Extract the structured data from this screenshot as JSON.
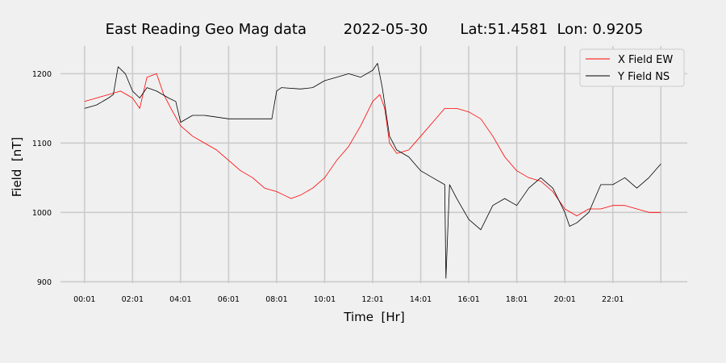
{
  "chart_data": {
    "type": "line",
    "title": "East Reading Geo Mag data        2022-05-30       Lat:51.4581  Lon: 0.9205",
    "xlabel": "Time  [Hr]",
    "ylabel": "Field  [nT]",
    "xlim": [
      -1.0,
      25.1
    ],
    "ylim": [
      898,
      1240
    ],
    "xticks": [
      0,
      2,
      4,
      6,
      8,
      10,
      12,
      14,
      16,
      18,
      20,
      22
    ],
    "xtick_labels": [
      "00:01",
      "02:01",
      "04:01",
      "06:01",
      "08:01",
      "10:01",
      "12:01",
      "14:01",
      "16:01",
      "18:01",
      "20:01",
      "22:01"
    ],
    "yticks": [
      900,
      1000,
      1100,
      1200
    ],
    "ytick_labels": [
      "900",
      "1000",
      "1100",
      "1200"
    ],
    "grid": true,
    "legend_position": "top-right",
    "x_unit": "hours",
    "series": [
      {
        "name": "X Field EW",
        "color": "#ff0000",
        "x": [
          0,
          0.5,
          1,
          1.5,
          2,
          2.3,
          2.6,
          3,
          3.3,
          3.6,
          4,
          4.5,
          5,
          5.5,
          6,
          6.5,
          7,
          7.5,
          8,
          8.3,
          8.6,
          9,
          9.5,
          10,
          10.5,
          11,
          11.5,
          12,
          12.3,
          12.5,
          12.7,
          13,
          13.5,
          14,
          14.5,
          15,
          15.5,
          16,
          16.5,
          17,
          17.5,
          18,
          18.5,
          19,
          19.5,
          20,
          20.5,
          21,
          21.5,
          22,
          22.5,
          23,
          23.5,
          24
        ],
        "y": [
          1160,
          1165,
          1170,
          1175,
          1165,
          1150,
          1195,
          1200,
          1170,
          1150,
          1125,
          1110,
          1100,
          1090,
          1075,
          1060,
          1050,
          1035,
          1030,
          1025,
          1020,
          1025,
          1035,
          1050,
          1075,
          1095,
          1125,
          1160,
          1170,
          1150,
          1100,
          1085,
          1090,
          1110,
          1130,
          1150,
          1150,
          1145,
          1135,
          1110,
          1080,
          1060,
          1050,
          1045,
          1030,
          1005,
          995,
          1005,
          1005,
          1010,
          1010,
          1005,
          1000,
          1000
        ]
      },
      {
        "name": "Y Field NS",
        "color": "#000000",
        "x": [
          0,
          0.5,
          1,
          1.2,
          1.4,
          1.7,
          2,
          2.3,
          2.6,
          3,
          3.5,
          3.8,
          4,
          4.5,
          5,
          6,
          7,
          7.8,
          8,
          8.2,
          9,
          9.5,
          10,
          10.5,
          11,
          11.5,
          12,
          12.2,
          12.4,
          12.7,
          13,
          13.5,
          14,
          14.5,
          15,
          15.05,
          15.2,
          15.5,
          16,
          16.5,
          17,
          17.5,
          18,
          18.5,
          19,
          19.5,
          20,
          20.2,
          20.5,
          21,
          21.5,
          22,
          22.5,
          23,
          23.5,
          24
        ],
        "y": [
          1150,
          1155,
          1165,
          1170,
          1210,
          1200,
          1175,
          1165,
          1180,
          1175,
          1165,
          1160,
          1130,
          1140,
          1140,
          1135,
          1135,
          1135,
          1175,
          1180,
          1178,
          1180,
          1190,
          1195,
          1200,
          1195,
          1205,
          1215,
          1180,
          1110,
          1090,
          1080,
          1060,
          1050,
          1040,
          905,
          1040,
          1020,
          990,
          975,
          1010,
          1020,
          1010,
          1035,
          1050,
          1035,
          1000,
          980,
          985,
          1000,
          1040,
          1040,
          1050,
          1035,
          1050,
          1070
        ]
      }
    ]
  }
}
